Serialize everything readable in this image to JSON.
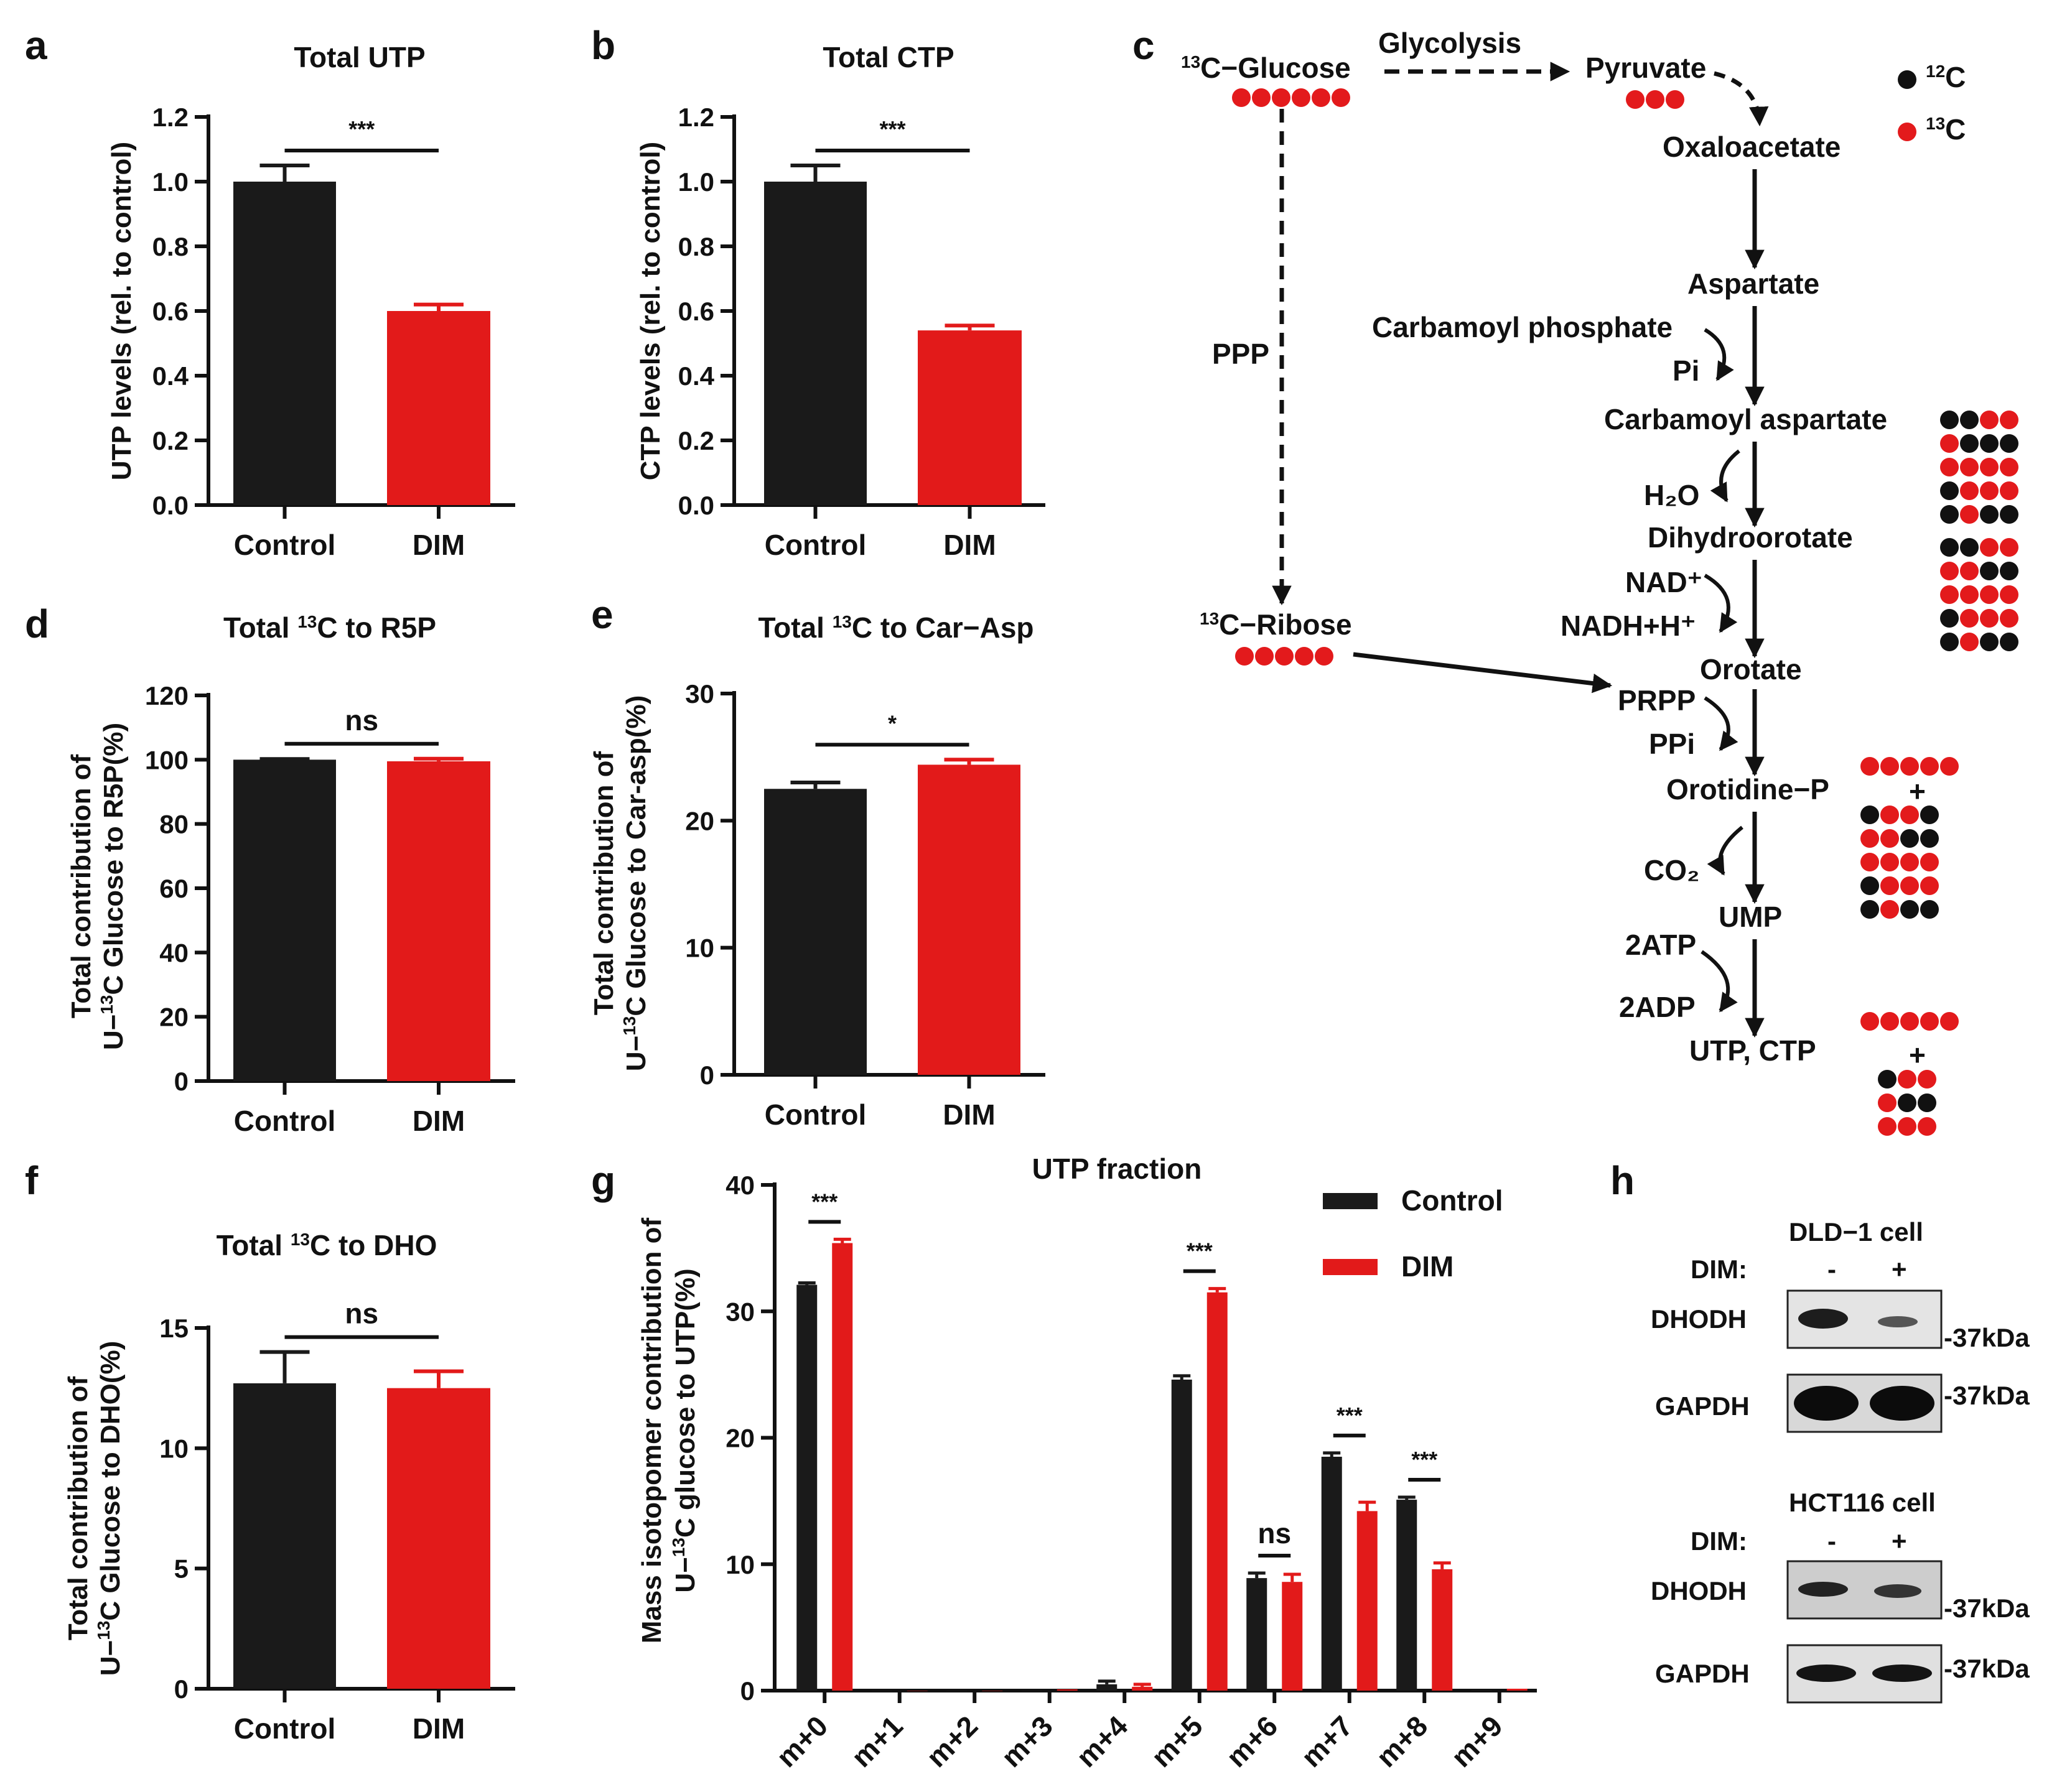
{
  "colors": {
    "control": "#1a1a1a",
    "dim": "#e21a1a",
    "c12": "#111111",
    "c13": "#e31a1c"
  },
  "panels": {
    "a": "a",
    "b": "b",
    "c": "c",
    "d": "d",
    "e": "e",
    "f": "f",
    "g": "g",
    "h": "h"
  },
  "chart_data": [
    {
      "id": "a",
      "type": "bar",
      "title": "Total UTP",
      "ylabel": "UTP levels (rel. to control)",
      "categories": [
        "Control",
        "DIM"
      ],
      "values": [
        1.0,
        0.6
      ],
      "errors": [
        0.05,
        0.02
      ],
      "ylim": [
        0,
        1.2
      ],
      "yticks": [
        "0.0",
        "0.2",
        "0.4",
        "0.6",
        "0.8",
        "1.0",
        "1.2"
      ],
      "significance": "***"
    },
    {
      "id": "b",
      "type": "bar",
      "title": "Total CTP",
      "ylabel": "CTP levels (rel. to control)",
      "categories": [
        "Control",
        "DIM"
      ],
      "values": [
        1.0,
        0.54
      ],
      "errors": [
        0.05,
        0.015
      ],
      "ylim": [
        0,
        1.2
      ],
      "yticks": [
        "0.0",
        "0.2",
        "0.4",
        "0.6",
        "0.8",
        "1.0",
        "1.2"
      ],
      "significance": "***"
    },
    {
      "id": "d",
      "type": "bar",
      "title_pre": "Total ",
      "title_sup": "13",
      "title_post": "C to R5P",
      "ylabel_line1": "Total contribution of",
      "ylabel_pre": "U−",
      "ylabel_sup": "13",
      "ylabel_post": "C Glucose to R5P(%)",
      "categories": [
        "Control",
        "DIM"
      ],
      "values": [
        100,
        99.5
      ],
      "errors": [
        0.2,
        0.8
      ],
      "ylim": [
        0,
        120
      ],
      "yticks": [
        "0",
        "20",
        "40",
        "60",
        "80",
        "100",
        "120"
      ],
      "significance": "ns"
    },
    {
      "id": "e",
      "type": "bar",
      "title_pre": "Total ",
      "title_sup": "13",
      "title_post": "C to Car−Asp",
      "ylabel_line1": "Total contribution of",
      "ylabel_pre": "U−",
      "ylabel_sup": "13",
      "ylabel_post": "C Glucose to Car-asp(%)",
      "categories": [
        "Control",
        "DIM"
      ],
      "values": [
        22.5,
        24.4
      ],
      "errors": [
        0.5,
        0.4
      ],
      "ylim": [
        0,
        30
      ],
      "yticks": [
        "0",
        "10",
        "20",
        "30"
      ],
      "significance": "*"
    },
    {
      "id": "f",
      "type": "bar",
      "title_pre": "Total ",
      "title_sup": "13",
      "title_post": "C to DHO",
      "ylabel_line1": "Total contribution of",
      "ylabel_pre": "U−",
      "ylabel_sup": "13",
      "ylabel_post": "C Glucose to DHO(%)",
      "categories": [
        "Control",
        "DIM"
      ],
      "values": [
        12.7,
        12.5
      ],
      "errors": [
        1.3,
        0.7
      ],
      "ylim": [
        0,
        15
      ],
      "yticks": [
        "0",
        "5",
        "10",
        "15"
      ],
      "significance": "ns"
    },
    {
      "id": "g",
      "type": "bar",
      "title": "UTP fraction",
      "ylabel_line1": "Mass isotopomer contribution of",
      "ylabel_pre": "U−",
      "ylabel_sup": "13",
      "ylabel_post": "C glucose to UTP(%)",
      "categories": [
        "m+0",
        "m+1",
        "m+2",
        "m+3",
        "m+4",
        "m+5",
        "m+6",
        "m+7",
        "m+8",
        "m+9"
      ],
      "series": [
        {
          "name": "Control",
          "values": [
            32.1,
            0,
            0,
            0,
            0.5,
            24.6,
            8.9,
            18.5,
            15.1,
            0.05
          ],
          "errors": [
            0.15,
            0,
            0,
            0,
            0.25,
            0.3,
            0.4,
            0.3,
            0.2,
            0
          ]
        },
        {
          "name": "DIM",
          "values": [
            35.4,
            0,
            0,
            0.1,
            0.3,
            31.5,
            8.6,
            14.2,
            9.6,
            0.15
          ],
          "errors": [
            0.3,
            0,
            0,
            0,
            0.2,
            0.3,
            0.6,
            0.7,
            0.5,
            0
          ]
        }
      ],
      "ylim": [
        0,
        40
      ],
      "yticks": [
        "0",
        "10",
        "20",
        "30",
        "40"
      ],
      "significance": [
        {
          "category": "m+0",
          "label": "***"
        },
        {
          "category": "m+5",
          "label": "***"
        },
        {
          "category": "m+6",
          "label": "ns"
        },
        {
          "category": "m+7",
          "label": "***"
        },
        {
          "category": "m+8",
          "label": "***"
        }
      ],
      "legend": [
        "Control",
        "DIM"
      ]
    }
  ],
  "pathway": {
    "glucose": {
      "sup": "13",
      "text": "C−Glucose"
    },
    "glycolysis": "Glycolysis",
    "pyruvate": "Pyruvate",
    "oxaloacetate": "Oxaloacetate",
    "aspartate": "Aspartate",
    "carbamoyl_phosphate": "Carbamoyl phosphate",
    "pi": "Pi",
    "carbamoyl_aspartate": "Carbamoyl aspartate",
    "h2o": "H₂O",
    "dihydroorotate": "Dihydroorotate",
    "nad": "NAD⁺",
    "nadh": "NADH+H⁺",
    "orotate": "Orotate",
    "prpp": "PRPP",
    "ppi": "PPi",
    "orotidine": "Orotidine−P",
    "co2": "CO₂",
    "ump": "UMP",
    "atp": "2ATP",
    "adp": "2ADP",
    "utp_ctp": "UTP, CTP",
    "ppp": "PPP",
    "ribose": {
      "sup": "13",
      "text": "C−Ribose"
    },
    "plus": "+",
    "legend": [
      {
        "sup": "12",
        "text": "C"
      },
      {
        "sup": "13",
        "text": "C"
      }
    ]
  },
  "western": {
    "blots": [
      {
        "cell": "DLD−1 cell",
        "treatment_label": "DIM:",
        "lanes": [
          "-",
          "+"
        ],
        "rows": [
          {
            "protein": "DHODH",
            "marker": "-37kDa"
          },
          {
            "protein": "GAPDH",
            "marker": "-37kDa"
          }
        ]
      },
      {
        "cell": "HCT116 cell",
        "treatment_label": "DIM:",
        "lanes": [
          "-",
          "+"
        ],
        "rows": [
          {
            "protein": "DHODH",
            "marker": "-37kDa"
          },
          {
            "protein": "GAPDH",
            "marker": "-37kDa"
          }
        ]
      }
    ]
  }
}
